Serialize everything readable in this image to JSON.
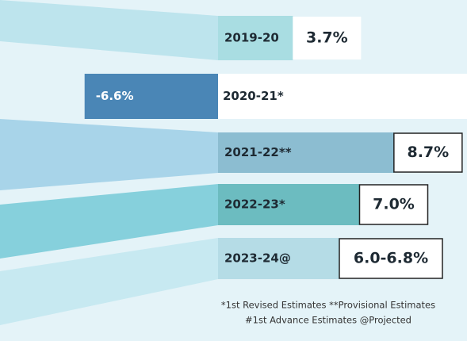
{
  "chart_data": {
    "type": "bar",
    "categories": [
      "2019-20",
      "2020-21*",
      "2021-22**",
      "2022-23*",
      "2023-24@"
    ],
    "values": [
      3.7,
      -6.6,
      8.7,
      7.0,
      [
        6.0,
        6.8
      ]
    ],
    "value_labels": [
      "3.7%",
      "-6.6%",
      "8.7%",
      "7.0%",
      "6.0-6.8%"
    ],
    "colors": [
      "#a9dde2",
      "#4a86b6",
      "#8cbdd1",
      "#6cbcc0",
      "#b5dce6"
    ],
    "annotations": [
      "*1st Revised Estimates **Provisional Estimates",
      "#1st Advance Estimates @Projected"
    ]
  }
}
